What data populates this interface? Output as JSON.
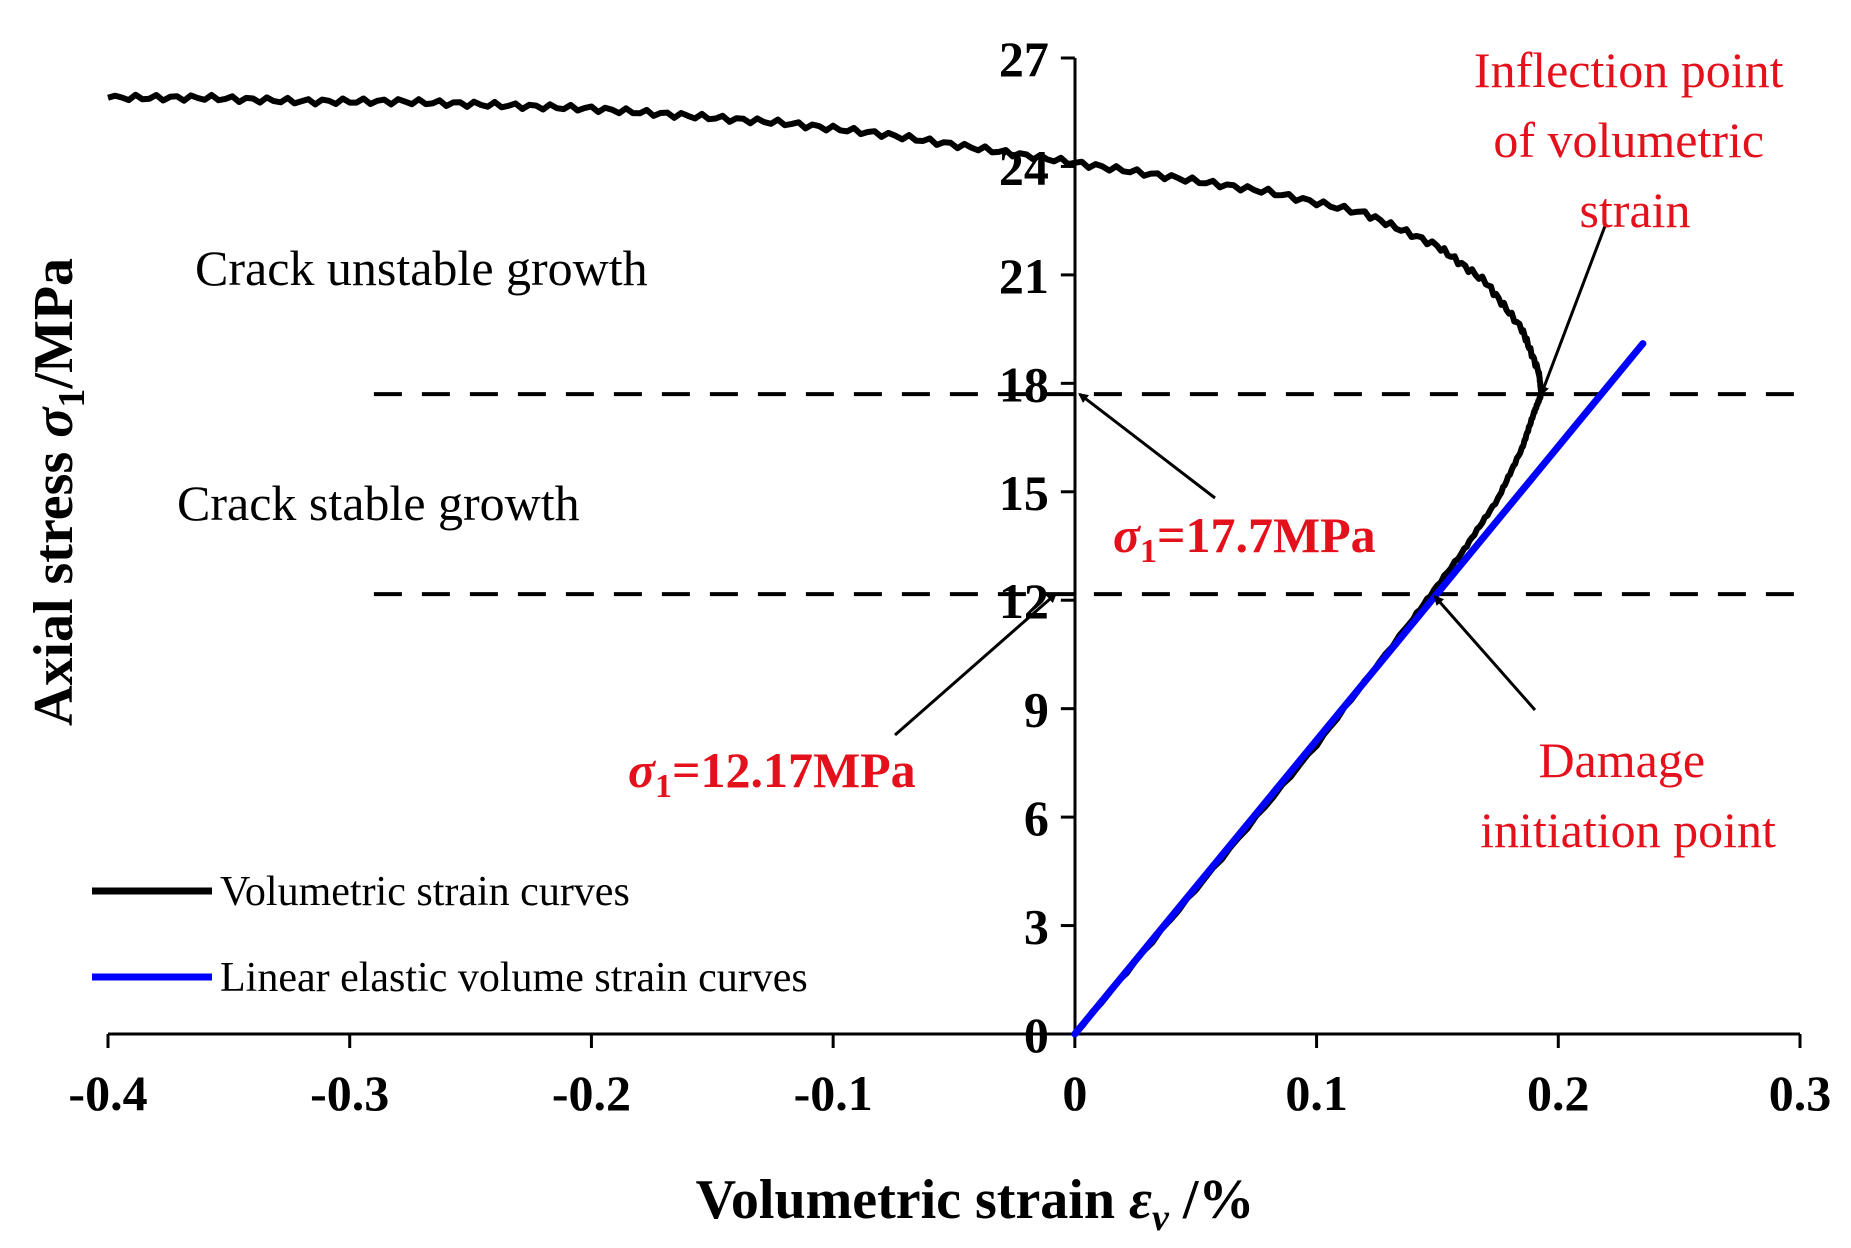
{
  "chart_data": {
    "type": "line",
    "xlabel_prefix": "Volumetric strain ",
    "xlabel_symbol": "ε",
    "xlabel_subscript": "v",
    "xlabel_suffix": " /%",
    "ylabel_prefix": "Axial stress ",
    "ylabel_symbol": "σ",
    "ylabel_subscript": "1",
    "ylabel_suffix": "/MPa",
    "xlim": [
      -0.4,
      0.3
    ],
    "ylim": [
      0,
      27
    ],
    "x_ticks": [
      "-0.4",
      "-0.3",
      "-0.2",
      "-0.1",
      "0",
      "0.1",
      "0.2",
      "0.3"
    ],
    "y_ticks": [
      "0",
      "3",
      "6",
      "9",
      "12",
      "15",
      "18",
      "21",
      "24",
      "27"
    ],
    "series": [
      {
        "name": "Volumetric strain curves",
        "color": "#000000",
        "x": [
          0.0,
          0.05,
          0.1,
          0.14,
          0.16,
          0.175,
          0.185,
          0.19,
          0.193,
          0.192,
          0.185,
          0.17,
          0.15,
          0.12,
          0.08,
          0.04,
          0.0,
          -0.04,
          -0.08,
          -0.12,
          -0.16,
          -0.2,
          -0.24,
          -0.28,
          -0.32,
          -0.36,
          -0.4
        ],
        "y": [
          0.0,
          4.0,
          8.0,
          11.5,
          13.3,
          14.8,
          16.2,
          17.2,
          17.7,
          18.3,
          19.5,
          20.8,
          21.8,
          22.7,
          23.3,
          23.7,
          24.1,
          24.5,
          24.9,
          25.2,
          25.4,
          25.6,
          25.7,
          25.8,
          25.8,
          25.9,
          25.9
        ]
      },
      {
        "name": "Linear elastic volume strain curves",
        "color": "#0000ff",
        "x": [
          0.0,
          0.235
        ],
        "y": [
          0.0,
          19.1
        ]
      }
    ],
    "reference_lines": [
      {
        "y": 17.7,
        "x_from": -0.29,
        "x_to": 0.3,
        "style": "dashed"
      },
      {
        "y": 12.17,
        "x_from": -0.29,
        "x_to": 0.3,
        "style": "dashed"
      }
    ],
    "annotations": {
      "inflection": {
        "lines": [
          "Inflection point",
          "of volumetric",
          "strain"
        ],
        "color": "#e4101b",
        "target": [
          0.193,
          17.7
        ]
      },
      "damage": {
        "lines": [
          "Damage",
          "initiation point"
        ],
        "color": "#e4101b",
        "target": [
          0.149,
          12.1
        ]
      },
      "sigma_177": {
        "symbol": "σ",
        "subscript": "1",
        "text": "=17.7MPa",
        "color": "#e4101b",
        "target": [
          0.002,
          17.7
        ]
      },
      "sigma_1217": {
        "symbol": "σ",
        "subscript": "1",
        "text": "=12.17MPa",
        "color": "#e4101b",
        "target": [
          -0.008,
          12.17
        ]
      },
      "unstable": "Crack unstable growth",
      "stable": "Crack stable growth"
    },
    "legend_position": "bottom-left"
  }
}
